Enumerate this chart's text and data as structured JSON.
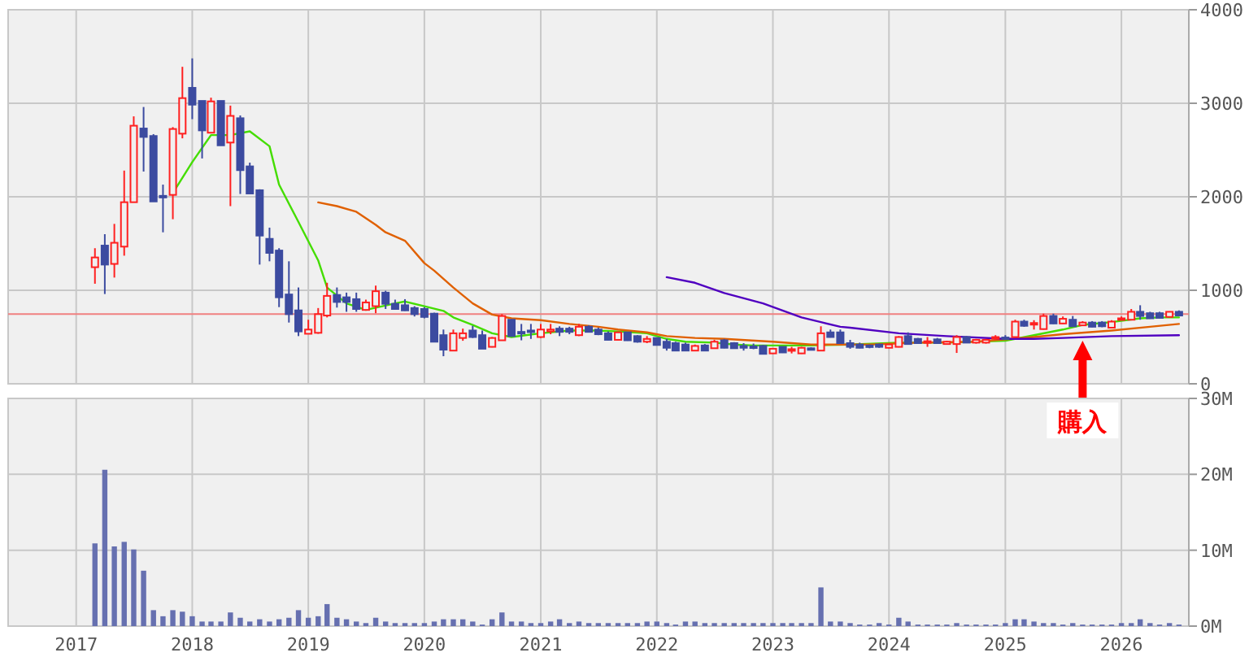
{
  "chart_data": [
    {
      "type": "candlestick",
      "x": [
        "2017-03",
        "2017-04",
        "2017-05",
        "2017-06",
        "2017-07",
        "2017-08",
        "2017-09",
        "2017-10",
        "2017-11",
        "2017-12",
        "2018-01",
        "2018-02",
        "2018-03",
        "2018-04",
        "2018-05",
        "2018-06",
        "2018-07",
        "2018-08",
        "2018-09",
        "2018-10",
        "2018-11",
        "2018-12",
        "2019-01",
        "2019-02",
        "2019-03",
        "2019-04",
        "2019-05",
        "2019-06",
        "2019-07",
        "2019-08",
        "2019-09",
        "2019-10",
        "2019-11",
        "2019-12",
        "2020-01",
        "2020-02",
        "2020-03",
        "2020-04",
        "2020-05",
        "2020-06",
        "2020-07",
        "2020-08",
        "2020-09",
        "2020-10",
        "2020-11",
        "2020-12",
        "2021-01",
        "2021-02",
        "2021-03",
        "2021-04",
        "2021-05",
        "2021-06",
        "2021-07",
        "2021-08",
        "2021-09",
        "2021-10",
        "2021-11",
        "2021-12",
        "2022-01",
        "2022-02",
        "2022-03",
        "2022-04",
        "2022-05",
        "2022-06",
        "2022-07",
        "2022-08",
        "2022-09",
        "2022-10",
        "2022-11",
        "2022-12",
        "2023-01",
        "2023-02",
        "2023-03",
        "2023-04",
        "2023-05",
        "2023-06",
        "2023-07",
        "2023-08",
        "2023-09",
        "2023-10",
        "2023-11",
        "2023-12",
        "2024-01",
        "2024-02",
        "2024-03",
        "2024-04",
        "2024-05",
        "2024-06",
        "2024-07",
        "2024-08",
        "2024-09",
        "2024-10",
        "2024-11",
        "2024-12",
        "2025-01",
        "2025-02",
        "2025-03",
        "2025-04",
        "2025-05",
        "2025-06",
        "2025-07",
        "2025-08",
        "2025-09",
        "2025-10",
        "2025-11",
        "2025-12",
        "2026-01",
        "2026-02",
        "2026-03",
        "2026-04",
        "2026-05",
        "2026-06",
        "2026-07"
      ],
      "ohlc": [
        [
          1247,
          1450,
          1070,
          1351
        ],
        [
          1478,
          1600,
          960,
          1275
        ],
        [
          1282,
          1710,
          1136,
          1508
        ],
        [
          1467,
          2280,
          1370,
          1942
        ],
        [
          1942,
          2860,
          1940,
          2760
        ],
        [
          2730,
          2960,
          2270,
          2640
        ],
        [
          2650,
          2670,
          1950,
          1950
        ],
        [
          2010,
          2130,
          1620,
          2000
        ],
        [
          2020,
          2745,
          1760,
          2725
        ],
        [
          2675,
          3390,
          2625,
          3055
        ],
        [
          3165,
          3480,
          2830,
          2985
        ],
        [
          3025,
          3025,
          2410,
          2710
        ],
        [
          2685,
          3060,
          2685,
          3020
        ],
        [
          3025,
          3025,
          2550,
          2550
        ],
        [
          2580,
          2975,
          1900,
          2865
        ],
        [
          2840,
          2870,
          2030,
          2285
        ],
        [
          2325,
          2365,
          2030,
          2035
        ],
        [
          2070,
          2080,
          1275,
          1585
        ],
        [
          1550,
          1670,
          1310,
          1400
        ],
        [
          1425,
          1450,
          820,
          925
        ],
        [
          955,
          1310,
          655,
          745
        ],
        [
          785,
          1030,
          510,
          560
        ],
        [
          535,
          685,
          535,
          580
        ],
        [
          545,
          810,
          535,
          745
        ],
        [
          730,
          1080,
          710,
          940
        ],
        [
          950,
          1030,
          815,
          875
        ],
        [
          925,
          975,
          770,
          875
        ],
        [
          905,
          975,
          770,
          800
        ],
        [
          790,
          900,
          790,
          870
        ],
        [
          830,
          1050,
          755,
          990
        ],
        [
          975,
          995,
          800,
          855
        ],
        [
          855,
          900,
          800,
          800
        ],
        [
          840,
          905,
          780,
          785
        ],
        [
          810,
          830,
          720,
          745
        ],
        [
          800,
          820,
          700,
          715
        ],
        [
          750,
          760,
          450,
          450
        ],
        [
          520,
          580,
          295,
          365
        ],
        [
          355,
          580,
          350,
          540
        ],
        [
          490,
          590,
          460,
          540
        ],
        [
          570,
          620,
          490,
          500
        ],
        [
          520,
          570,
          375,
          375
        ],
        [
          395,
          500,
          390,
          490
        ],
        [
          465,
          745,
          465,
          725
        ],
        [
          685,
          690,
          505,
          510
        ],
        [
          555,
          640,
          465,
          550
        ],
        [
          570,
          640,
          480,
          560
        ],
        [
          500,
          640,
          490,
          580
        ],
        [
          560,
          640,
          530,
          580
        ],
        [
          590,
          615,
          510,
          555
        ],
        [
          590,
          610,
          530,
          555
        ],
        [
          520,
          640,
          510,
          610
        ],
        [
          610,
          625,
          555,
          555
        ],
        [
          580,
          600,
          520,
          530
        ],
        [
          540,
          560,
          465,
          470
        ],
        [
          470,
          560,
          465,
          550
        ],
        [
          550,
          555,
          460,
          465
        ],
        [
          510,
          520,
          440,
          450
        ],
        [
          450,
          510,
          435,
          480
        ],
        [
          490,
          495,
          410,
          415
        ],
        [
          450,
          480,
          355,
          385
        ],
        [
          435,
          450,
          350,
          355
        ],
        [
          420,
          440,
          350,
          355
        ],
        [
          355,
          420,
          350,
          405
        ],
        [
          410,
          425,
          350,
          355
        ],
        [
          380,
          470,
          375,
          450
        ],
        [
          465,
          480,
          380,
          385
        ],
        [
          435,
          445,
          375,
          380
        ],
        [
          405,
          435,
          355,
          385
        ],
        [
          400,
          430,
          370,
          385
        ],
        [
          405,
          415,
          315,
          320
        ],
        [
          325,
          380,
          320,
          375
        ],
        [
          395,
          400,
          330,
          335
        ],
        [
          360,
          395,
          325,
          370
        ],
        [
          325,
          395,
          320,
          385
        ],
        [
          380,
          390,
          365,
          375
        ],
        [
          355,
          615,
          350,
          540
        ],
        [
          550,
          580,
          495,
          500
        ],
        [
          550,
          580,
          430,
          435
        ],
        [
          435,
          470,
          375,
          395
        ],
        [
          420,
          440,
          380,
          385
        ],
        [
          410,
          420,
          380,
          395
        ],
        [
          420,
          430,
          385,
          395
        ],
        [
          385,
          430,
          380,
          420
        ],
        [
          395,
          510,
          390,
          500
        ],
        [
          510,
          550,
          420,
          425
        ],
        [
          480,
          490,
          430,
          435
        ],
        [
          445,
          500,
          395,
          455
        ],
        [
          475,
          490,
          430,
          435
        ],
        [
          425,
          460,
          420,
          450
        ],
        [
          425,
          520,
          330,
          500
        ],
        [
          500,
          510,
          440,
          440
        ],
        [
          440,
          480,
          430,
          470
        ],
        [
          440,
          480,
          430,
          470
        ],
        [
          495,
          520,
          470,
          500
        ],
        [
          495,
          520,
          470,
          490
        ],
        [
          500,
          685,
          495,
          665
        ],
        [
          665,
          685,
          610,
          620
        ],
        [
          640,
          680,
          580,
          650
        ],
        [
          585,
          750,
          580,
          725
        ],
        [
          725,
          750,
          640,
          645
        ],
        [
          645,
          720,
          640,
          695
        ],
        [
          685,
          725,
          610,
          615
        ],
        [
          625,
          670,
          620,
          655
        ],
        [
          655,
          670,
          605,
          610
        ],
        [
          655,
          670,
          605,
          615
        ],
        [
          600,
          680,
          595,
          665
        ],
        [
          690,
          720,
          680,
          700
        ],
        [
          685,
          800,
          680,
          770
        ],
        [
          770,
          840,
          685,
          725
        ],
        [
          755,
          770,
          695,
          700
        ],
        [
          755,
          770,
          700,
          705
        ],
        [
          715,
          775,
          710,
          770
        ],
        [
          770,
          785,
          725,
          730
        ]
      ],
      "series": [
        {
          "type": "line",
          "color": "#44dd00",
          "x": [
            "2017-11",
            "2018-01",
            "2018-03",
            "2018-05",
            "2018-07",
            "2018-09",
            "2018-10",
            "2018-12",
            "2019-02",
            "2019-03",
            "2019-05",
            "2019-07",
            "2019-10",
            "2019-11",
            "2020-01",
            "2020-03",
            "2020-04",
            "2020-06",
            "2020-08",
            "2020-10",
            "2021-01",
            "2021-04",
            "2021-07",
            "2021-09",
            "2021-12",
            "2022-02",
            "2022-04",
            "2022-07",
            "2022-09",
            "2022-11",
            "2023-03",
            "2023-05",
            "2023-09",
            "2024-02",
            "2024-07",
            "2025-01",
            "2025-04",
            "2025-07",
            "2025-09",
            "2025-12",
            "2026-03",
            "2026-05",
            "2026-07"
          ],
          "values": [
            2040,
            2370,
            2660,
            2660,
            2700,
            2540,
            2130,
            1730,
            1320,
            1030,
            860,
            790,
            860,
            880,
            830,
            780,
            710,
            630,
            540,
            500,
            540,
            570,
            570,
            560,
            540,
            480,
            450,
            440,
            420,
            410,
            410,
            410,
            420,
            440,
            440,
            460,
            520,
            580,
            630,
            660,
            700,
            710,
            710
          ]
        },
        {
          "type": "line",
          "color": "#e06000",
          "x": [
            "2019-02",
            "2019-04",
            "2019-06",
            "2019-08",
            "2019-09",
            "2019-11",
            "2020-01",
            "2020-02",
            "2020-04",
            "2020-06",
            "2020-08",
            "2020-10",
            "2021-01",
            "2021-04",
            "2021-07",
            "2021-09",
            "2021-12",
            "2022-02",
            "2022-05",
            "2022-08",
            "2023-01",
            "2023-05",
            "2023-11",
            "2024-04",
            "2024-10",
            "2025-04",
            "2025-07",
            "2025-12",
            "2026-04",
            "2026-07"
          ],
          "values": [
            1940,
            1900,
            1840,
            1700,
            1620,
            1530,
            1290,
            1210,
            1030,
            860,
            740,
            700,
            680,
            640,
            610,
            580,
            550,
            510,
            490,
            480,
            450,
            420,
            420,
            440,
            450,
            500,
            530,
            570,
            610,
            640
          ]
        },
        {
          "type": "line",
          "color": "#5000c0",
          "x": [
            "2022-02",
            "2022-05",
            "2022-08",
            "2022-12",
            "2023-04",
            "2023-06",
            "2023-08",
            "2023-09",
            "2024-02",
            "2024-07",
            "2025-01",
            "2025-04",
            "2025-07",
            "2025-12",
            "2026-07"
          ],
          "values": [
            1140,
            1080,
            970,
            860,
            710,
            660,
            610,
            600,
            540,
            510,
            480,
            480,
            490,
            510,
            520
          ]
        }
      ],
      "xlim": [
        "2016-06",
        "2026-08"
      ],
      "xticks": [
        "2017",
        "2018",
        "2019",
        "2020",
        "2021",
        "2022",
        "2023",
        "2024",
        "2025",
        "2026"
      ],
      "ylim": [
        0,
        4000
      ],
      "yticks": [
        0,
        1000,
        2000,
        3000,
        4000
      ],
      "grid": true,
      "tick_labels": "y",
      "ref_lines": [
        {
          "axis": "y",
          "value": 745,
          "color": "#f08080"
        }
      ],
      "annotations": [
        {
          "text": "購入",
          "x": "2025-09",
          "y": 460
        }
      ]
    },
    {
      "type": "bar",
      "color": "#6670b0",
      "x": [
        "2017-03",
        "2017-04",
        "2017-05",
        "2017-06",
        "2017-07",
        "2017-08",
        "2017-09",
        "2017-10",
        "2017-11",
        "2017-12",
        "2018-01",
        "2018-02",
        "2018-03",
        "2018-04",
        "2018-05",
        "2018-06",
        "2018-07",
        "2018-08",
        "2018-09",
        "2018-10",
        "2018-11",
        "2018-12",
        "2019-01",
        "2019-02",
        "2019-03",
        "2019-04",
        "2019-05",
        "2019-06",
        "2019-07",
        "2019-08",
        "2019-09",
        "2019-10",
        "2019-11",
        "2019-12",
        "2020-01",
        "2020-02",
        "2020-03",
        "2020-04",
        "2020-05",
        "2020-06",
        "2020-07",
        "2020-08",
        "2020-09",
        "2020-10",
        "2020-11",
        "2020-12",
        "2021-01",
        "2021-02",
        "2021-03",
        "2021-04",
        "2021-05",
        "2021-06",
        "2021-07",
        "2021-08",
        "2021-09",
        "2021-10",
        "2021-11",
        "2021-12",
        "2022-01",
        "2022-02",
        "2022-03",
        "2022-04",
        "2022-05",
        "2022-06",
        "2022-07",
        "2022-08",
        "2022-09",
        "2022-10",
        "2022-11",
        "2022-12",
        "2023-01",
        "2023-02",
        "2023-03",
        "2023-04",
        "2023-05",
        "2023-06",
        "2023-07",
        "2023-08",
        "2023-09",
        "2023-10",
        "2023-11",
        "2023-12",
        "2024-01",
        "2024-02",
        "2024-03",
        "2024-04",
        "2024-05",
        "2024-06",
        "2024-07",
        "2024-08",
        "2024-09",
        "2024-10",
        "2024-11",
        "2024-12",
        "2025-01",
        "2025-02",
        "2025-03",
        "2025-04",
        "2025-05",
        "2025-06",
        "2025-07",
        "2025-08",
        "2025-09",
        "2025-10",
        "2025-11",
        "2025-12",
        "2026-01",
        "2026-02",
        "2026-03",
        "2026-04",
        "2026-05",
        "2026-06",
        "2026-07"
      ],
      "values": [
        10.9,
        20.6,
        10.5,
        11.1,
        10.1,
        7.3,
        2.1,
        1.3,
        2.1,
        1.9,
        1.3,
        0.6,
        0.6,
        0.6,
        1.8,
        1.1,
        0.6,
        0.9,
        0.6,
        0.9,
        1.1,
        2.1,
        1.1,
        1.3,
        2.9,
        1.1,
        0.9,
        0.6,
        0.4,
        1.1,
        0.6,
        0.4,
        0.4,
        0.4,
        0.4,
        0.6,
        0.9,
        0.9,
        0.9,
        0.6,
        0.2,
        0.9,
        1.8,
        0.6,
        0.6,
        0.4,
        0.4,
        0.6,
        0.9,
        0.4,
        0.6,
        0.4,
        0.4,
        0.4,
        0.4,
        0.4,
        0.4,
        0.6,
        0.6,
        0.4,
        0.2,
        0.6,
        0.6,
        0.4,
        0.4,
        0.4,
        0.4,
        0.4,
        0.4,
        0.4,
        0.4,
        0.4,
        0.4,
        0.4,
        0.4,
        5.1,
        0.6,
        0.6,
        0.4,
        0.2,
        0.2,
        0.4,
        0.2,
        1.1,
        0.6,
        0.2,
        0.2,
        0.2,
        0.2,
        0.4,
        0.2,
        0.2,
        0.2,
        0.2,
        0.4,
        0.9,
        0.9,
        0.6,
        0.4,
        0.4,
        0.2,
        0.4,
        0.2,
        0.2,
        0.2,
        0.2,
        0.4,
        0.4,
        0.9,
        0.4,
        0.2,
        0.4,
        0.2
      ],
      "xlim": [
        "2016-06",
        "2026-08"
      ],
      "xticks": [
        "2017",
        "2018",
        "2019",
        "2020",
        "2021",
        "2022",
        "2023",
        "2024",
        "2025",
        "2026"
      ],
      "ylim": [
        0,
        30
      ],
      "yticks": [
        {
          "value": 0,
          "label": "0M"
        },
        {
          "value": 10,
          "label": "10M"
        },
        {
          "value": 20,
          "label": "20M"
        },
        {
          "value": 30,
          "label": "30M"
        }
      ],
      "grid": true
    }
  ]
}
